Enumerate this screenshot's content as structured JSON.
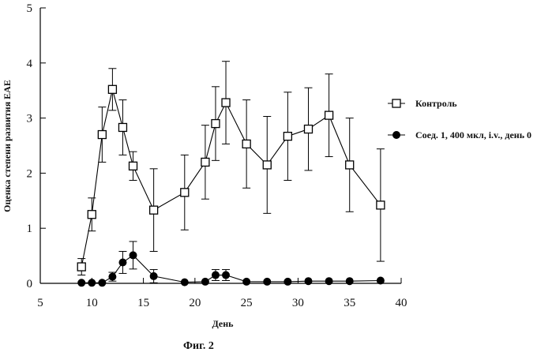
{
  "chart_data": {
    "type": "line",
    "xlabel": "День",
    "ylabel": "Оценка степени развития EAE",
    "caption": "Фиг. 2",
    "xlim": [
      5,
      40
    ],
    "ylim": [
      0,
      5
    ],
    "xticks": [
      5,
      10,
      15,
      20,
      25,
      30,
      35,
      40
    ],
    "yticks": [
      0,
      1,
      2,
      3,
      4,
      5
    ],
    "legend_position": "right",
    "series": [
      {
        "name": "Контроль",
        "marker": "square-open",
        "color": "#000000",
        "x": [
          9,
          10,
          11,
          12,
          13,
          14,
          16,
          19,
          21,
          22,
          23,
          25,
          27,
          29,
          31,
          33,
          35,
          38
        ],
        "y": [
          0.3,
          1.25,
          2.7,
          3.52,
          2.83,
          2.13,
          1.33,
          1.65,
          2.2,
          2.9,
          3.28,
          2.53,
          2.15,
          2.67,
          2.8,
          3.05,
          2.15,
          1.42
        ],
        "err": [
          0.15,
          0.3,
          0.5,
          0.38,
          0.5,
          0.26,
          0.75,
          0.68,
          0.67,
          0.67,
          0.75,
          0.8,
          0.88,
          0.8,
          0.75,
          0.75,
          0.85,
          1.02
        ]
      },
      {
        "name": "Соед. 1, 400 мкл, i.v., день 0",
        "marker": "circle-filled",
        "color": "#000000",
        "x": [
          9,
          10,
          11,
          12,
          13,
          14,
          16,
          19,
          21,
          22,
          23,
          25,
          27,
          29,
          31,
          33,
          35,
          38
        ],
        "y": [
          0.01,
          0.01,
          0.01,
          0.12,
          0.38,
          0.51,
          0.13,
          0.02,
          0.03,
          0.15,
          0.15,
          0.03,
          0.03,
          0.03,
          0.04,
          0.04,
          0.04,
          0.05
        ],
        "err": [
          0,
          0,
          0,
          0.08,
          0.2,
          0.25,
          0.12,
          0,
          0,
          0.1,
          0.1,
          0,
          0,
          0,
          0,
          0,
          0,
          0
        ]
      }
    ]
  }
}
